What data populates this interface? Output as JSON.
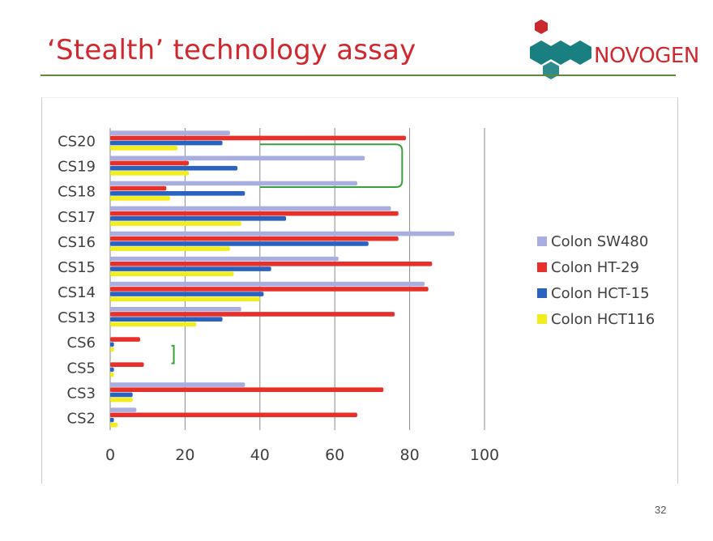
{
  "slide": {
    "title": "‘Stealth’ technology assay",
    "logo_text": "NOVOGEN",
    "page_number": "32"
  },
  "colors": {
    "title": "#d0282e",
    "rule": "#5a8a3a",
    "logo_red": "#c8282e",
    "logo_teal": "#1a7f80",
    "bracket": "#3aa03a"
  },
  "chart_data": {
    "type": "bar",
    "orientation": "horizontal",
    "categories": [
      "CS20",
      "CS19",
      "CS18",
      "CS17",
      "CS16",
      "CS15",
      "CS14",
      "CS13",
      "CS6",
      "CS5",
      "CS3",
      "CS2"
    ],
    "series": [
      {
        "name": "Colon SW480",
        "color": "#a9aee0",
        "values": [
          32,
          68,
          66,
          75,
          92,
          61,
          84,
          35,
          0,
          0,
          36,
          7
        ]
      },
      {
        "name": "Colon HT-29",
        "color": "#e8302a",
        "values": [
          79,
          21,
          15,
          77,
          77,
          86,
          85,
          76,
          8,
          9,
          73,
          66
        ]
      },
      {
        "name": "Colon HCT-15",
        "color": "#2a62c0",
        "values": [
          30,
          34,
          36,
          47,
          69,
          43,
          41,
          30,
          1,
          1,
          6,
          1
        ]
      },
      {
        "name": "Colon HCT116",
        "color": "#f2ee1e",
        "values": [
          18,
          21,
          16,
          35,
          32,
          33,
          40,
          23,
          1,
          1,
          6,
          2
        ]
      }
    ],
    "xlim": [
      0,
      100
    ],
    "xticks": [
      "0",
      "20",
      "40",
      "60",
      "80",
      "100"
    ],
    "grid": true,
    "legend_position": "right",
    "annotations": [
      {
        "type": "bracket",
        "categories": [
          "CS20",
          "CS18"
        ],
        "at_value": 78,
        "color": "#3aa03a"
      },
      {
        "type": "bracket",
        "categories": [
          "CS6",
          "CS5"
        ],
        "at_value": 17,
        "color": "#3aa03a"
      }
    ]
  }
}
